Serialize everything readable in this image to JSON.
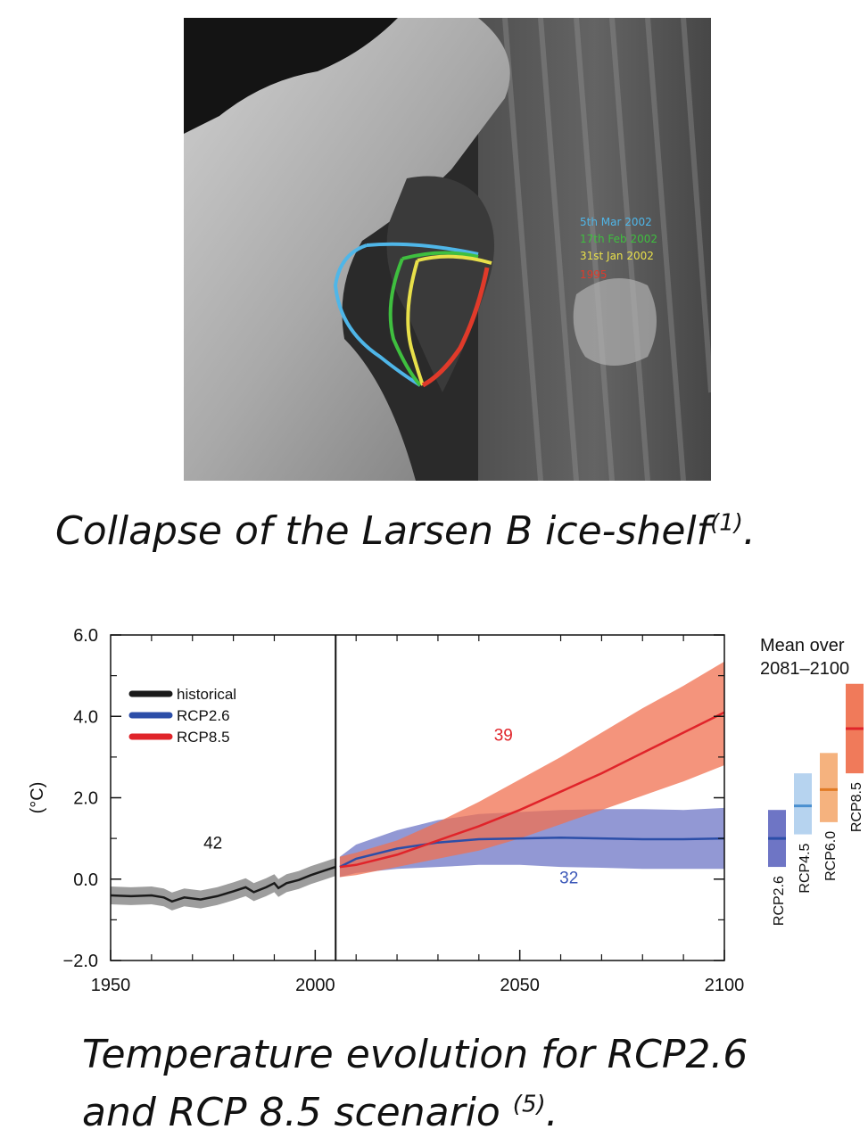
{
  "figure1": {
    "type": "satellite-image",
    "legend": [
      {
        "label": "5th Mar 2002",
        "color": "#4fb6e8"
      },
      {
        "label": "17th Feb 2002",
        "color": "#3fbf3f"
      },
      {
        "label": "31st Jan 2002",
        "color": "#e8e04a"
      },
      {
        "label": "1995",
        "color": "#e03a2a"
      }
    ],
    "caption_text": "Collapse of the Larsen B ice-shelf",
    "caption_ref": "(1)",
    "caption_end": "."
  },
  "figure2": {
    "caption_line1": "Temperature evolution for RCP2.6",
    "caption_line2_text": "and RCP 8.5 scenario ",
    "caption_line2_ref": "(5)",
    "caption_line2_end": "."
  },
  "chart_data": {
    "type": "line",
    "ylabel": "(°C)",
    "xlim": [
      1950,
      2100
    ],
    "ylim": [
      -2,
      6
    ],
    "xticks": [
      1950,
      2000,
      2050,
      2100
    ],
    "ytick_labels": [
      "6.0",
      "4.0",
      "2.0",
      "0.0",
      "−2.0"
    ],
    "yticks": [
      6,
      4,
      2,
      0,
      -2
    ],
    "vline_x": 2005,
    "legend_position": "top-left",
    "series": [
      {
        "name": "historical",
        "color": "#1a1a1a",
        "band_color": "#8c8c8c",
        "x": [
          1950,
          1955,
          1960,
          1963,
          1965,
          1968,
          1972,
          1976,
          1980,
          1983,
          1985,
          1988,
          1990,
          1991,
          1993,
          1996,
          1999,
          2002,
          2005
        ],
        "values": [
          -0.4,
          -0.42,
          -0.4,
          -0.45,
          -0.55,
          -0.45,
          -0.5,
          -0.42,
          -0.3,
          -0.2,
          -0.32,
          -0.2,
          -0.1,
          -0.22,
          -0.1,
          -0.02,
          0.1,
          0.2,
          0.3
        ],
        "band_half_width": 0.22,
        "label": "42",
        "label_at": [
          1975,
          0.75
        ],
        "label_color": "#111111"
      },
      {
        "name": "RCP2.6",
        "color": "#2c4ea8",
        "band_color": "#6e75c5",
        "x": [
          2006,
          2010,
          2020,
          2030,
          2040,
          2050,
          2060,
          2070,
          2080,
          2090,
          2100
        ],
        "values": [
          0.3,
          0.5,
          0.75,
          0.9,
          0.98,
          1.0,
          1.02,
          1.0,
          0.98,
          0.98,
          1.0
        ],
        "lower": [
          0.05,
          0.15,
          0.25,
          0.3,
          0.35,
          0.35,
          0.3,
          0.28,
          0.25,
          0.25,
          0.25
        ],
        "upper": [
          0.55,
          0.85,
          1.2,
          1.45,
          1.6,
          1.65,
          1.7,
          1.72,
          1.72,
          1.7,
          1.75
        ],
        "label": "32",
        "label_at": [
          2062,
          -0.1
        ],
        "label_color": "#3b57b8"
      },
      {
        "name": "RCP8.5",
        "color": "#e0242a",
        "band_color": "#f07050",
        "x": [
          2006,
          2010,
          2020,
          2030,
          2040,
          2050,
          2060,
          2070,
          2080,
          2090,
          2100
        ],
        "values": [
          0.3,
          0.35,
          0.6,
          0.95,
          1.3,
          1.7,
          2.15,
          2.6,
          3.1,
          3.6,
          4.1
        ],
        "lower": [
          0.05,
          0.1,
          0.3,
          0.5,
          0.7,
          1.0,
          1.35,
          1.7,
          2.05,
          2.4,
          2.8
        ],
        "upper": [
          0.55,
          0.65,
          0.95,
          1.4,
          1.9,
          2.45,
          3.0,
          3.6,
          4.2,
          4.75,
          5.35
        ],
        "label": "39",
        "label_at": [
          2046,
          3.4
        ],
        "label_color": "#e0242a"
      }
    ],
    "side_panel": {
      "title_line1": "Mean over",
      "title_line2": "2081–2100",
      "bars": [
        {
          "name": "RCP2.6",
          "mean": 1.0,
          "low": 0.3,
          "high": 1.7,
          "fill": "#6e75c5",
          "line": "#2c4ea8"
        },
        {
          "name": "RCP4.5",
          "mean": 1.8,
          "low": 1.1,
          "high": 2.6,
          "fill": "#b6d3ef",
          "line": "#4a8fd0"
        },
        {
          "name": "RCP6.0",
          "mean": 2.2,
          "low": 1.4,
          "high": 3.1,
          "fill": "#f5b27e",
          "line": "#e07a24"
        },
        {
          "name": "RCP8.5",
          "mean": 3.7,
          "low": 2.6,
          "high": 4.8,
          "fill": "#f07a5a",
          "line": "#e0242a"
        }
      ]
    }
  }
}
